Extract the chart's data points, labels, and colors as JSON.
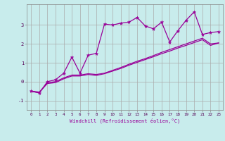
{
  "xlabel": "Windchill (Refroidissement éolien,°C)",
  "bg_color": "#c8ecec",
  "grid_color": "#aaaaaa",
  "line_color": "#990099",
  "xlim": [
    -0.5,
    23.5
  ],
  "ylim": [
    -1.5,
    4.1
  ],
  "xticks": [
    0,
    1,
    2,
    3,
    4,
    5,
    6,
    7,
    8,
    9,
    10,
    11,
    12,
    13,
    14,
    15,
    16,
    17,
    18,
    19,
    20,
    21,
    22,
    23
  ],
  "yticks": [
    -1,
    0,
    1,
    2,
    3
  ],
  "series1_x": [
    0,
    1,
    2,
    3,
    4,
    5,
    6,
    7,
    8,
    9,
    10,
    11,
    12,
    13,
    14,
    15,
    16,
    17,
    18,
    19,
    20,
    21,
    22,
    23
  ],
  "series1_y": [
    -0.5,
    -0.6,
    0.0,
    0.1,
    0.45,
    1.3,
    0.45,
    1.4,
    1.5,
    3.05,
    3.0,
    3.1,
    3.15,
    3.4,
    2.95,
    2.8,
    3.15,
    2.1,
    2.7,
    3.25,
    3.7,
    2.5,
    2.6,
    2.65
  ],
  "series2_x": [
    0,
    1,
    2,
    3,
    4,
    5,
    6,
    7,
    8,
    9,
    10,
    11,
    12,
    13,
    14,
    15,
    16,
    17,
    18,
    19,
    20,
    21,
    22,
    23
  ],
  "series2_y": [
    -0.5,
    -0.6,
    -0.05,
    0.0,
    0.2,
    0.35,
    0.35,
    0.42,
    0.38,
    0.45,
    0.6,
    0.75,
    0.92,
    1.08,
    1.22,
    1.38,
    1.55,
    1.7,
    1.85,
    2.0,
    2.15,
    2.3,
    2.0,
    2.05
  ],
  "series3_x": [
    0,
    1,
    2,
    3,
    4,
    5,
    6,
    7,
    8,
    9,
    10,
    11,
    12,
    13,
    14,
    15,
    16,
    17,
    18,
    19,
    20,
    21,
    22,
    23
  ],
  "series3_y": [
    -0.5,
    -0.55,
    -0.1,
    -0.05,
    0.15,
    0.3,
    0.3,
    0.38,
    0.33,
    0.42,
    0.56,
    0.7,
    0.87,
    1.02,
    1.17,
    1.32,
    1.48,
    1.62,
    1.78,
    1.92,
    2.07,
    2.22,
    1.92,
    2.05
  ]
}
